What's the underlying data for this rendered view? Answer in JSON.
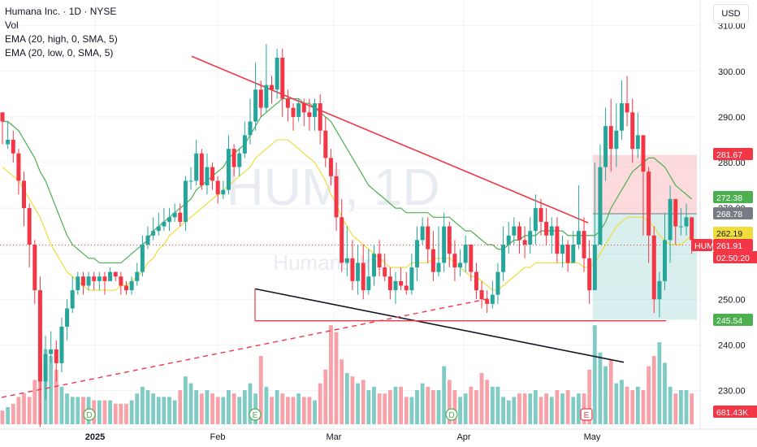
{
  "header": {
    "title": "Humana Inc. · 1D · NYSE",
    "indicators": [
      "Vol",
      "EMA (20, high, 0, SMA, 5)",
      "EMA (20, low, 0, SMA, 5)"
    ],
    "currency": "USD"
  },
  "watermark": {
    "symbol": "HUM, 1D",
    "name": "Humana Inc."
  },
  "chart_data": {
    "type": "candlestick",
    "symbol": "HUM",
    "interval": "1D",
    "xlabels": [
      "2025",
      "Feb",
      "Mar",
      "Apr",
      "May"
    ],
    "y_ticks": [
      230,
      240,
      250,
      260,
      270,
      280,
      290,
      300,
      310
    ],
    "ylim": [
      226,
      312
    ],
    "candles": [
      [
        291,
        289,
        291,
        284
      ],
      [
        284,
        285,
        289,
        283
      ],
      [
        285,
        282,
        287,
        280
      ],
      [
        282,
        276,
        283,
        273
      ],
      [
        276,
        270,
        278,
        266
      ],
      [
        270,
        262,
        271,
        257
      ],
      [
        262,
        252,
        263,
        249
      ],
      [
        252,
        232,
        255,
        222
      ],
      [
        232,
        238,
        242,
        228
      ],
      [
        238,
        239,
        243,
        236
      ],
      [
        239,
        236,
        241,
        232
      ],
      [
        236,
        244,
        246,
        234
      ],
      [
        244,
        248,
        250,
        241
      ],
      [
        248,
        252,
        255,
        247
      ],
      [
        252,
        255,
        256,
        251
      ],
      [
        255,
        253,
        256,
        251
      ],
      [
        253,
        255,
        256,
        252
      ],
      [
        255,
        254,
        256,
        252
      ],
      [
        254,
        255,
        256,
        252
      ],
      [
        255,
        254,
        256,
        251
      ],
      [
        254,
        256,
        257,
        254
      ],
      [
        256,
        255,
        256,
        254
      ],
      [
        255,
        253,
        256,
        251
      ],
      [
        253,
        252,
        254,
        251
      ],
      [
        252,
        254,
        255,
        251
      ],
      [
        254,
        256,
        258,
        253
      ],
      [
        256,
        262,
        264,
        255
      ],
      [
        262,
        264,
        266,
        261
      ],
      [
        264,
        265,
        268,
        263
      ],
      [
        265,
        266,
        269,
        264
      ],
      [
        266,
        267,
        270,
        265
      ],
      [
        267,
        268,
        270,
        265
      ],
      [
        268,
        269,
        271,
        267
      ],
      [
        269,
        267,
        271,
        266
      ],
      [
        267,
        276,
        277,
        265
      ],
      [
        276,
        276,
        279,
        274
      ],
      [
        276,
        282,
        285,
        275
      ],
      [
        282,
        275,
        283,
        274
      ],
      [
        275,
        279,
        282,
        273
      ],
      [
        279,
        276,
        280,
        274
      ],
      [
        276,
        273,
        277,
        271
      ],
      [
        273,
        274,
        276,
        272
      ],
      [
        274,
        283,
        286,
        273
      ],
      [
        283,
        279,
        284,
        277
      ],
      [
        279,
        282,
        283,
        277
      ],
      [
        282,
        286,
        289,
        281
      ],
      [
        286,
        289,
        294,
        284
      ],
      [
        289,
        296,
        302,
        287
      ],
      [
        296,
        292,
        298,
        290
      ],
      [
        292,
        297,
        306,
        291
      ],
      [
        297,
        296,
        299,
        293
      ],
      [
        296,
        303,
        305,
        294
      ],
      [
        303,
        294,
        305,
        290
      ],
      [
        294,
        292,
        296,
        289
      ],
      [
        292,
        290,
        293,
        287
      ],
      [
        290,
        293,
        294,
        289
      ],
      [
        293,
        291,
        294,
        288
      ],
      [
        291,
        290,
        294,
        287
      ],
      [
        290,
        293,
        294,
        287
      ],
      [
        293,
        287,
        295,
        284
      ],
      [
        287,
        281,
        290,
        279
      ],
      [
        281,
        277,
        283,
        275
      ],
      [
        277,
        268,
        280,
        265
      ],
      [
        268,
        258,
        272,
        256
      ],
      [
        258,
        259,
        266,
        255
      ],
      [
        259,
        254,
        263,
        252
      ],
      [
        254,
        258,
        262,
        251
      ],
      [
        258,
        252,
        262,
        250
      ],
      [
        252,
        255,
        261,
        251
      ],
      [
        255,
        260,
        262,
        253
      ],
      [
        260,
        257,
        263,
        255
      ],
      [
        257,
        255,
        260,
        254
      ],
      [
        255,
        252,
        257,
        250
      ],
      [
        252,
        254,
        256,
        249
      ],
      [
        254,
        253,
        257,
        252
      ],
      [
        253,
        252,
        256,
        251
      ],
      [
        252,
        257,
        260,
        251
      ],
      [
        257,
        263,
        266,
        254
      ],
      [
        263,
        266,
        268,
        262
      ],
      [
        266,
        261,
        268,
        258
      ],
      [
        261,
        256,
        265,
        254
      ],
      [
        256,
        258,
        266,
        255
      ],
      [
        258,
        266,
        269,
        256
      ],
      [
        266,
        260,
        267,
        257
      ],
      [
        260,
        257,
        263,
        254
      ],
      [
        257,
        258,
        261,
        255
      ],
      [
        258,
        262,
        264,
        256
      ],
      [
        262,
        256,
        262,
        254
      ],
      [
        256,
        252,
        258,
        250
      ],
      [
        252,
        250,
        254,
        248
      ],
      [
        250,
        249,
        252,
        247
      ],
      [
        249,
        251,
        254,
        248
      ],
      [
        251,
        256,
        258,
        249
      ],
      [
        256,
        262,
        266,
        254
      ],
      [
        262,
        264,
        267,
        260
      ],
      [
        264,
        266,
        268,
        262
      ],
      [
        266,
        263,
        267,
        260
      ],
      [
        263,
        262,
        266,
        259
      ],
      [
        262,
        265,
        268,
        260
      ],
      [
        265,
        270,
        273,
        262
      ],
      [
        270,
        267,
        272,
        264
      ],
      [
        267,
        264,
        270,
        262
      ],
      [
        264,
        266,
        268,
        260
      ],
      [
        266,
        260,
        268,
        258
      ],
      [
        260,
        262,
        264,
        257
      ],
      [
        262,
        258,
        263,
        256
      ],
      [
        258,
        262,
        265,
        258
      ],
      [
        262,
        265,
        275,
        261
      ],
      [
        265,
        259,
        268,
        256
      ],
      [
        259,
        252,
        263,
        249
      ],
      [
        252,
        262,
        280,
        258
      ],
      [
        262,
        279,
        284,
        275
      ],
      [
        279,
        288,
        292,
        276
      ],
      [
        288,
        283,
        294,
        278
      ],
      [
        283,
        287,
        293,
        279
      ],
      [
        287,
        293,
        298,
        285
      ],
      [
        293,
        291,
        299,
        288
      ],
      [
        291,
        283,
        294,
        280
      ],
      [
        283,
        286,
        291,
        281
      ],
      [
        286,
        278,
        286,
        264
      ],
      [
        278,
        264,
        279,
        258
      ],
      [
        264,
        250,
        266,
        247
      ],
      [
        250,
        254,
        256,
        246
      ],
      [
        254,
        263,
        269,
        252
      ],
      [
        263,
        272,
        275,
        258
      ],
      [
        272,
        266,
        271,
        262
      ],
      [
        266,
        266,
        270,
        264
      ],
      [
        266,
        268,
        271,
        264
      ],
      [
        268,
        263,
        265,
        260
      ]
    ],
    "volumes": [
      4,
      5,
      6,
      8,
      9,
      8,
      13,
      25,
      22,
      20,
      16,
      11,
      9,
      8,
      8,
      8,
      8,
      7,
      7,
      7,
      7,
      6,
      6,
      6,
      7,
      9,
      11,
      10,
      9,
      8,
      8,
      8,
      7,
      10,
      14,
      12,
      10,
      9,
      10,
      9,
      8,
      8,
      10,
      9,
      8,
      10,
      12,
      9,
      20,
      11,
      8,
      10,
      9,
      8,
      8,
      9,
      8,
      8,
      7,
      12,
      16,
      29,
      27,
      19,
      15,
      14,
      12,
      13,
      10,
      11,
      9,
      9,
      10,
      11,
      11,
      8,
      8,
      10,
      12,
      11,
      10,
      10,
      17,
      13,
      10,
      8,
      9,
      11,
      10,
      15,
      13,
      11,
      11,
      8,
      7,
      8,
      9,
      9,
      9,
      10,
      8,
      9,
      8,
      10,
      9,
      10,
      8,
      9,
      9,
      16,
      29,
      21,
      17,
      19,
      12,
      13,
      11,
      10,
      11,
      10,
      17,
      20,
      24,
      18,
      11,
      9,
      10,
      10,
      9
    ],
    "series": [
      {
        "name": "EMA (20, high, 0, SMA, 5)",
        "color": "#4caf50",
        "values": [
          289,
          289,
          288,
          287,
          285,
          283,
          281,
          278,
          276,
          273,
          270,
          267,
          264,
          262,
          261,
          260,
          259,
          259,
          258,
          258,
          258,
          258,
          258,
          259,
          260,
          261,
          262,
          263,
          265,
          266,
          267,
          268,
          269,
          270,
          271,
          272,
          274,
          275,
          276,
          277,
          278,
          279,
          281,
          282,
          283,
          284,
          286,
          288,
          290,
          291,
          292,
          293,
          294,
          294,
          294,
          294,
          293,
          293,
          292,
          291,
          290,
          289,
          287,
          285,
          283,
          281,
          279,
          277,
          275,
          274,
          273,
          272,
          271,
          270,
          270,
          269,
          269,
          269,
          269,
          269,
          268,
          268,
          268,
          268,
          267,
          266,
          265,
          265,
          264,
          263,
          262,
          262,
          261,
          261,
          262,
          263,
          263,
          264,
          264,
          264,
          265,
          265,
          265,
          265,
          265,
          264,
          264,
          264,
          264,
          264,
          264,
          265,
          267,
          270,
          272,
          274,
          276,
          278,
          279,
          280,
          281,
          281,
          280,
          279,
          277,
          275,
          274,
          273,
          272
        ]
      },
      {
        "name": "EMA (20, low, 0, SMA, 5)",
        "color": "#f0dc3c",
        "values": [
          279,
          278,
          277,
          276,
          274,
          272,
          270,
          268,
          265,
          262,
          260,
          258,
          256,
          255,
          254,
          253,
          252,
          252,
          252,
          252,
          252,
          252,
          253,
          253,
          254,
          255,
          256,
          258,
          259,
          261,
          262,
          264,
          265,
          266,
          267,
          268,
          269,
          270,
          271,
          272,
          273,
          274,
          275,
          276,
          277,
          278,
          279,
          281,
          282,
          283,
          284,
          285,
          285,
          285,
          284,
          283,
          282,
          281,
          280,
          278,
          276,
          273,
          271,
          268,
          266,
          264,
          263,
          262,
          261,
          260,
          259,
          258,
          257,
          257,
          257,
          257,
          258,
          258,
          258,
          258,
          259,
          259,
          259,
          259,
          258,
          257,
          256,
          255,
          255,
          254,
          253,
          252,
          252,
          253,
          254,
          255,
          256,
          257,
          257,
          258,
          258,
          258,
          258,
          258,
          258,
          258,
          258,
          258,
          257,
          257,
          258,
          260,
          262,
          264,
          266,
          267,
          268,
          268,
          268,
          268,
          267,
          266,
          264,
          263,
          262,
          262,
          262,
          263,
          264
        ]
      }
    ],
    "price_labels": [
      {
        "text": "281.67",
        "color": "#f23645"
      },
      {
        "text": "272.38",
        "color": "#4caf50"
      },
      {
        "text": "268.78",
        "color": "#787b86"
      },
      {
        "text": "262.19",
        "color": "#f0dc3c"
      },
      {
        "text": "HUM",
        "color": "#f23645"
      },
      {
        "text": "261.91",
        "color": "#f23645"
      },
      {
        "text": "02:50:20",
        "color": "#f23645"
      },
      {
        "text": "245.54",
        "color": "#4caf50"
      },
      {
        "text": "681.43K",
        "color": "#f23645"
      }
    ],
    "event_markers": [
      {
        "text": "D",
        "color": "#4caf50"
      },
      {
        "text": "E",
        "color": "#4caf50"
      },
      {
        "text": "D",
        "color": "#4caf50"
      },
      {
        "text": "E",
        "color": "#f23645"
      }
    ],
    "colors": {
      "up": "#26a69a",
      "down": "#f23645",
      "up_vol": "#80cbc4",
      "down_vol": "#f7a1a8"
    }
  }
}
